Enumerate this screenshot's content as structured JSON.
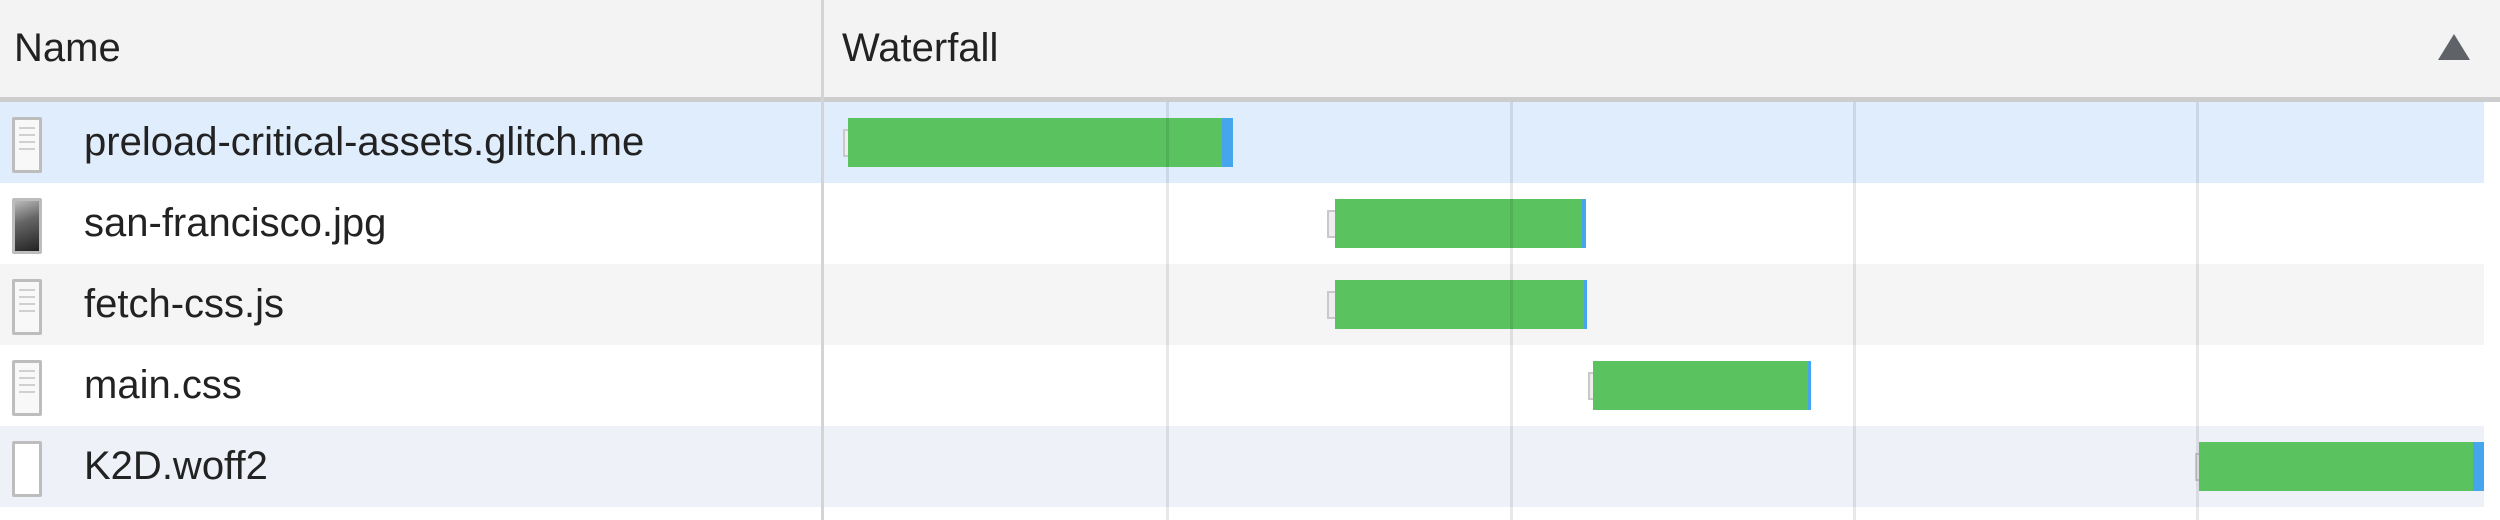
{
  "columns": {
    "name": "Name",
    "waterfall": "Waterfall",
    "sort_icon": "triangle-up-icon"
  },
  "colors": {
    "selected_row": "#e0edfc",
    "alt_row": "#f5f5f5",
    "font_row": "#eef1f8",
    "bar_receiving": "#5ac35f",
    "bar_waiting": "#45a6ee"
  },
  "requests": [
    {
      "name": "preload-critical-assets.glitch.me",
      "type": "document",
      "icon": "document-icon"
    },
    {
      "name": "san-francisco.jpg",
      "type": "image",
      "icon": "image-icon"
    },
    {
      "name": "fetch-css.js",
      "type": "script",
      "icon": "document-icon"
    },
    {
      "name": "main.css",
      "type": "stylesheet",
      "icon": "document-icon"
    },
    {
      "name": "K2D.woff2",
      "type": "font",
      "icon": "font-file-icon"
    }
  ]
}
